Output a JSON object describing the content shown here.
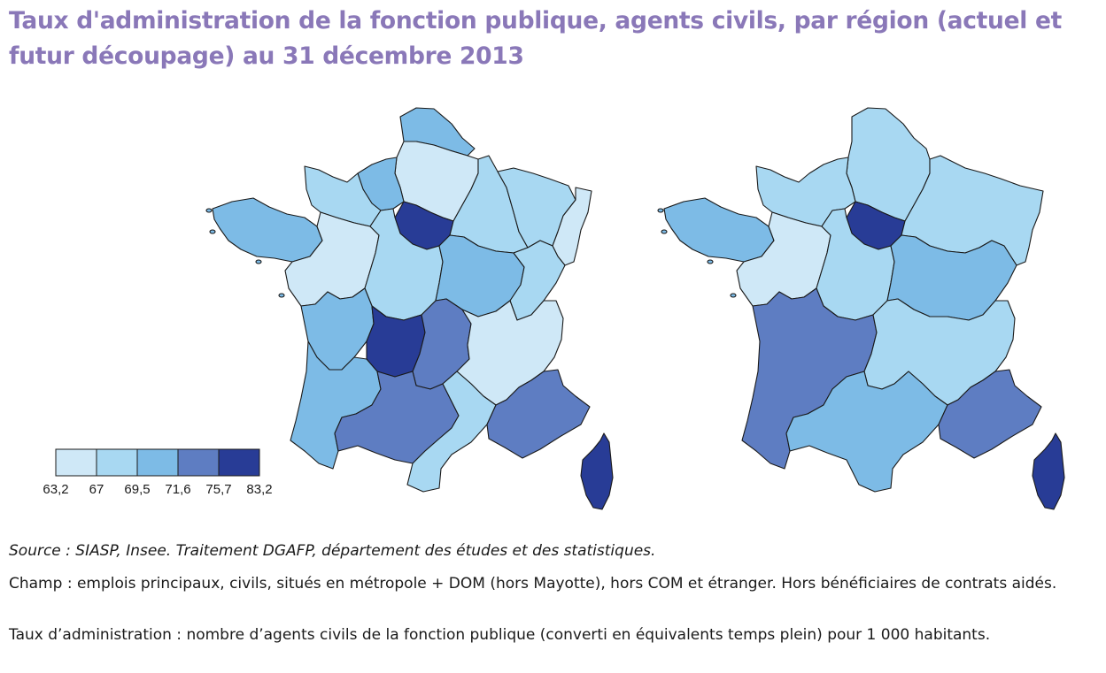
{
  "title": "Taux d'administration de la fonction publique, agents civils, par région (actuel et futur découpage) au 31 décembre 2013",
  "legend": {
    "ticks": [
      "63,2",
      "67",
      "69,5",
      "71,6",
      "75,7",
      "83,2"
    ],
    "colors": [
      "#cfe8f7",
      "#a8d8f2",
      "#7dbbe6",
      "#5e7dc2",
      "#283c96"
    ]
  },
  "maps": [
    {
      "name": "actuel",
      "regions": [
        {
          "name": "Nord-Pas-de-Calais",
          "class": 2
        },
        {
          "name": "Picardie",
          "class": 0
        },
        {
          "name": "Haute-Normandie",
          "class": 2
        },
        {
          "name": "Basse-Normandie",
          "class": 1
        },
        {
          "name": "Île-de-France",
          "class": 4
        },
        {
          "name": "Champagne-Ardenne",
          "class": 1
        },
        {
          "name": "Lorraine",
          "class": 1
        },
        {
          "name": "Alsace",
          "class": 0
        },
        {
          "name": "Bretagne",
          "class": 2
        },
        {
          "name": "Pays de la Loire",
          "class": 0
        },
        {
          "name": "Centre",
          "class": 1
        },
        {
          "name": "Bourgogne",
          "class": 2
        },
        {
          "name": "Franche-Comté",
          "class": 1
        },
        {
          "name": "Poitou-Charentes",
          "class": 2
        },
        {
          "name": "Limousin",
          "class": 4
        },
        {
          "name": "Auvergne",
          "class": 3
        },
        {
          "name": "Rhône-Alpes",
          "class": 0
        },
        {
          "name": "Aquitaine",
          "class": 2
        },
        {
          "name": "Midi-Pyrénées",
          "class": 3
        },
        {
          "name": "Languedoc-Roussillon",
          "class": 1
        },
        {
          "name": "Provence-Alpes-Côte d'Azur",
          "class": 3
        },
        {
          "name": "Corse",
          "class": 4
        }
      ]
    },
    {
      "name": "futur",
      "regions": [
        {
          "name": "Nord-Pas-de-Calais-Picardie",
          "class": 1
        },
        {
          "name": "Normandie",
          "class": 1
        },
        {
          "name": "Île-de-France",
          "class": 4
        },
        {
          "name": "Alsace-Champagne-Ardenne-Lorraine",
          "class": 1
        },
        {
          "name": "Bretagne",
          "class": 2
        },
        {
          "name": "Pays de la Loire",
          "class": 0
        },
        {
          "name": "Centre",
          "class": 1
        },
        {
          "name": "Bourgogne-Franche-Comté",
          "class": 2
        },
        {
          "name": "Aquitaine-Limousin-Poitou-Charentes",
          "class": 3
        },
        {
          "name": "Auvergne-Rhône-Alpes",
          "class": 1
        },
        {
          "name": "Languedoc-Roussillon-Midi-Pyrénées",
          "class": 2
        },
        {
          "name": "Provence-Alpes-Côte d'Azur",
          "class": 3
        },
        {
          "name": "Corse",
          "class": 4
        }
      ]
    }
  ],
  "notes": {
    "source": "Source : SIASP, Insee. Traitement DGAFP, département des études et des statistiques.",
    "champ": "Champ : emplois principaux, civils, situés en métropole + DOM (hors Mayotte), hors COM et étranger. Hors bénéficiaires de contrats aidés.",
    "taux": "Taux d’administration : nombre d’agents civils de la fonction publique (converti en équivalents temps plein) pour 1 000 habitants."
  }
}
